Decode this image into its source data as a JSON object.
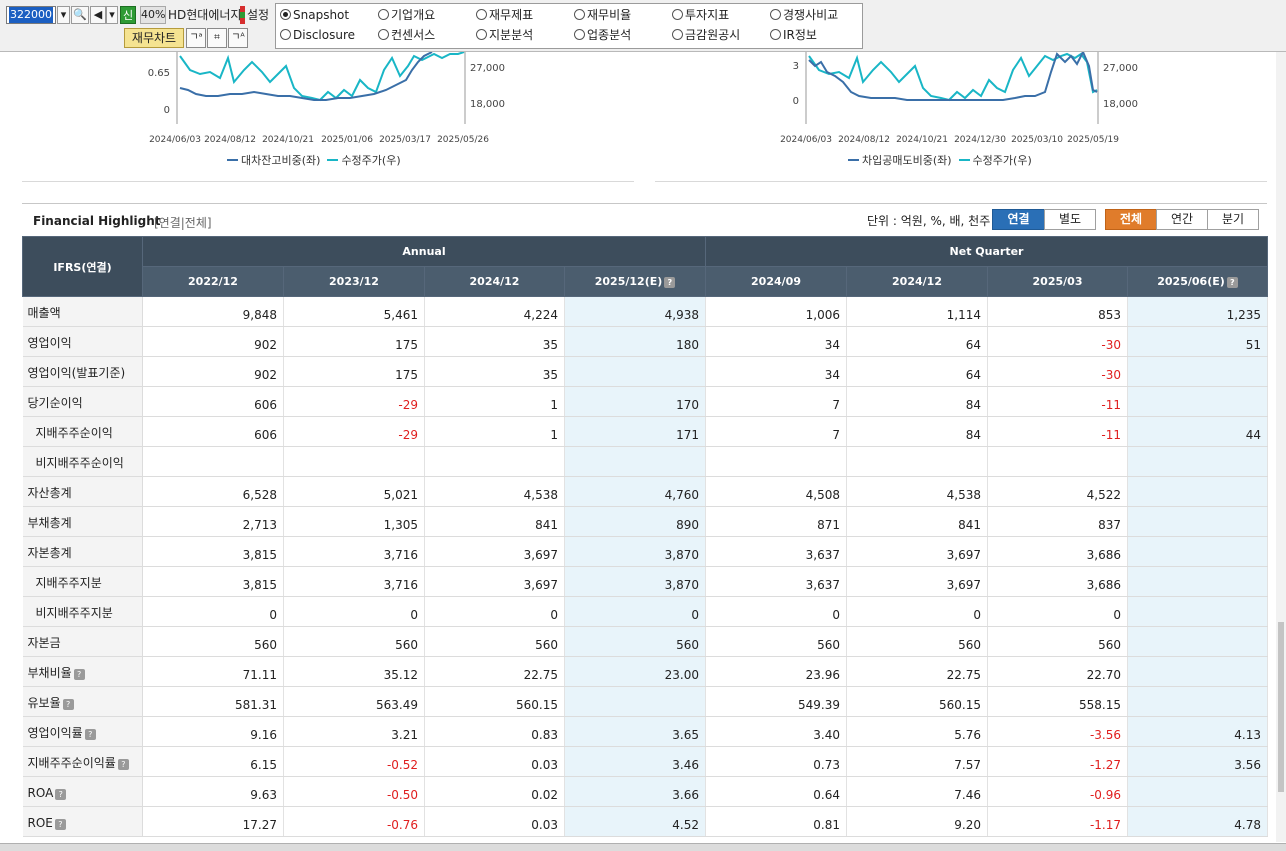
{
  "toolbar": {
    "code": "322000",
    "sin_badge": "신",
    "pct": "40%",
    "company": "HD현대에너지",
    "setting": "설정",
    "chart_button": "재무차트"
  },
  "menu": {
    "row1": [
      "Snapshot",
      "기업개요",
      "재무제표",
      "재무비율",
      "투자지표",
      "경쟁사비교"
    ],
    "row2": [
      "Disclosure",
      "컨센서스",
      "지분분석",
      "업종분석",
      "금감원공시",
      "IR정보"
    ],
    "selected": "Snapshot"
  },
  "chart_left": {
    "y_left_ticks": [
      "0.65",
      "0"
    ],
    "y_right_ticks": [
      "27,000",
      "18,000"
    ],
    "x_ticks": [
      "2024/06/03",
      "2024/08/12",
      "2024/10/21",
      "2025/01/06",
      "2025/03/17",
      "2025/05/26"
    ],
    "legend1": "대차잔고비중(좌)",
    "legend2": "수정주가(우)"
  },
  "chart_right": {
    "y_left_ticks": [
      "3",
      "0"
    ],
    "y_right_ticks": [
      "27,000",
      "18,000"
    ],
    "x_ticks": [
      "2024/06/03",
      "2024/08/12",
      "2024/10/21",
      "2024/12/30",
      "2025/03/10",
      "2025/05/19"
    ],
    "legend1": "차입공매도비중(좌)",
    "legend2": "수정주가(우)"
  },
  "colors": {
    "series_dark": "#3a6fa8",
    "series_light": "#19b6c6"
  },
  "fh": {
    "title": "Financial Highlight",
    "scope": "[연결|전체]",
    "unit": "단위 : 억원, %, 배, 천주",
    "btn_consol": "연결",
    "btn_separate": "별도",
    "btn_all": "전체",
    "btn_annual": "연간",
    "btn_quarter": "분기",
    "corner": "IFRS(연결)",
    "annual_header": "Annual",
    "quarter_header": "Net Quarter",
    "periods": [
      "2022/12",
      "2023/12",
      "2024/12",
      "2025/12(E)",
      "2024/09",
      "2024/12",
      "2025/03",
      "2025/06(E)"
    ],
    "rows": [
      {
        "label": "매출액",
        "values": [
          "9,848",
          "5,461",
          "4,224",
          "4,938",
          "1,006",
          "1,114",
          "853",
          "1,235"
        ]
      },
      {
        "label": "영업이익",
        "values": [
          "902",
          "175",
          "35",
          "180",
          "34",
          "64",
          "-30",
          "51"
        ]
      },
      {
        "label": "영업이익(발표기준)",
        "values": [
          "902",
          "175",
          "35",
          "",
          "34",
          "64",
          "-30",
          ""
        ]
      },
      {
        "label": "당기순이익",
        "values": [
          "606",
          "-29",
          "1",
          "170",
          "7",
          "84",
          "-11",
          ""
        ]
      },
      {
        "label": "지배주주순이익",
        "indent": true,
        "values": [
          "606",
          "-29",
          "1",
          "171",
          "7",
          "84",
          "-11",
          "44"
        ]
      },
      {
        "label": "비지배주주순이익",
        "indent": true,
        "values": [
          "",
          "",
          "",
          "",
          "",
          "",
          "",
          ""
        ]
      },
      {
        "label": "자산총계",
        "values": [
          "6,528",
          "5,021",
          "4,538",
          "4,760",
          "4,508",
          "4,538",
          "4,522",
          ""
        ]
      },
      {
        "label": "부채총계",
        "values": [
          "2,713",
          "1,305",
          "841",
          "890",
          "871",
          "841",
          "837",
          ""
        ]
      },
      {
        "label": "자본총계",
        "values": [
          "3,815",
          "3,716",
          "3,697",
          "3,870",
          "3,637",
          "3,697",
          "3,686",
          ""
        ]
      },
      {
        "label": "지배주주지분",
        "indent": true,
        "values": [
          "3,815",
          "3,716",
          "3,697",
          "3,870",
          "3,637",
          "3,697",
          "3,686",
          ""
        ]
      },
      {
        "label": "비지배주주지분",
        "indent": true,
        "values": [
          "0",
          "0",
          "0",
          "0",
          "0",
          "0",
          "0",
          ""
        ]
      },
      {
        "label": "자본금",
        "values": [
          "560",
          "560",
          "560",
          "560",
          "560",
          "560",
          "560",
          ""
        ]
      },
      {
        "label": "부채비율",
        "help": true,
        "values": [
          "71.11",
          "35.12",
          "22.75",
          "23.00",
          "23.96",
          "22.75",
          "22.70",
          ""
        ]
      },
      {
        "label": "유보율",
        "help": true,
        "values": [
          "581.31",
          "563.49",
          "560.15",
          "",
          "549.39",
          "560.15",
          "558.15",
          ""
        ]
      },
      {
        "label": "영업이익률",
        "help": true,
        "values": [
          "9.16",
          "3.21",
          "0.83",
          "3.65",
          "3.40",
          "5.76",
          "-3.56",
          "4.13"
        ]
      },
      {
        "label": "지배주주순이익률",
        "help": true,
        "values": [
          "6.15",
          "-0.52",
          "0.03",
          "3.46",
          "0.73",
          "7.57",
          "-1.27",
          "3.56"
        ]
      },
      {
        "label": "ROA",
        "help": true,
        "values": [
          "9.63",
          "-0.50",
          "0.02",
          "3.66",
          "0.64",
          "7.46",
          "-0.96",
          ""
        ]
      },
      {
        "label": "ROE",
        "help": true,
        "values": [
          "17.27",
          "-0.76",
          "0.03",
          "4.52",
          "0.81",
          "9.20",
          "-1.17",
          "4.78"
        ]
      }
    ]
  }
}
